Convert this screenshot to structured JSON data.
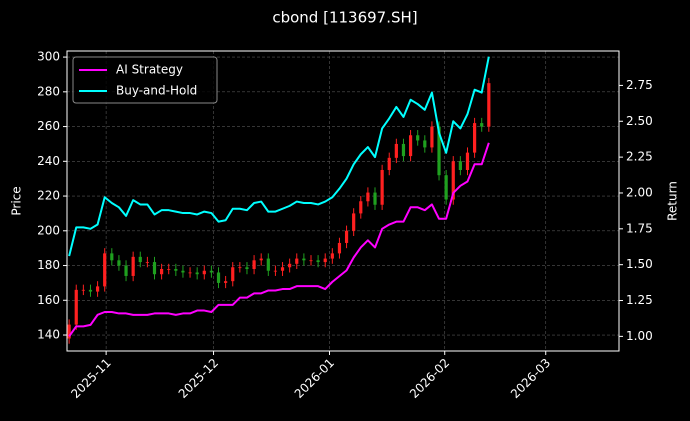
{
  "chart_data": {
    "type": "candlestick",
    "title": "cbond [113697.SH]",
    "ylabel": "Price",
    "y2label": "Return",
    "open": [
      138,
      146,
      166,
      166,
      165,
      168,
      187,
      183,
      180,
      174,
      185,
      182,
      182,
      175,
      178,
      178,
      177,
      176,
      176,
      175,
      177,
      176,
      170,
      171,
      179,
      179,
      178,
      183,
      184,
      177,
      177,
      179,
      181,
      184,
      183,
      183,
      182,
      184,
      187,
      193,
      200,
      210,
      217,
      222,
      215,
      235,
      242,
      250,
      243,
      255,
      252,
      248,
      260,
      232,
      218,
      240,
      235,
      245,
      262,
      260
    ],
    "high": [
      149,
      169,
      169,
      169,
      171,
      190,
      190,
      186,
      183,
      188,
      188,
      185,
      185,
      181,
      181,
      181,
      180,
      179,
      179,
      180,
      180,
      179,
      174,
      182,
      182,
      182,
      186,
      187,
      187,
      180,
      182,
      184,
      187,
      187,
      186,
      186,
      187,
      190,
      196,
      203,
      213,
      220,
      225,
      225,
      238,
      245,
      253,
      253,
      258,
      258,
      255,
      263,
      263,
      235,
      243,
      243,
      248,
      265,
      265,
      288
    ],
    "low": [
      135,
      143,
      163,
      162,
      162,
      165,
      180,
      177,
      171,
      171,
      179,
      179,
      172,
      172,
      175,
      174,
      173,
      173,
      172,
      172,
      173,
      167,
      167,
      168,
      176,
      175,
      175,
      180,
      174,
      174,
      174,
      176,
      178,
      180,
      180,
      179,
      179,
      181,
      184,
      190,
      197,
      207,
      214,
      212,
      212,
      232,
      239,
      240,
      240,
      249,
      245,
      245,
      229,
      215,
      215,
      232,
      232,
      242,
      257,
      257
    ],
    "close": [
      146,
      166,
      166,
      165,
      168,
      187,
      183,
      180,
      174,
      185,
      182,
      182,
      175,
      178,
      178,
      177,
      176,
      176,
      175,
      177,
      176,
      170,
      171,
      179,
      179,
      178,
      183,
      184,
      177,
      177,
      179,
      181,
      184,
      183,
      183,
      182,
      184,
      187,
      193,
      200,
      210,
      217,
      222,
      215,
      235,
      242,
      250,
      243,
      255,
      252,
      248,
      260,
      232,
      218,
      240,
      235,
      245,
      262,
      260,
      285
    ],
    "up_color": "#ff2020",
    "down_color": "#1fa01f",
    "series": [
      {
        "name": "AI Strategy",
        "color": "#ff00ff",
        "axis": "y2",
        "values": [
          1.0,
          1.07,
          1.07,
          1.08,
          1.15,
          1.17,
          1.17,
          1.16,
          1.16,
          1.15,
          1.15,
          1.15,
          1.16,
          1.16,
          1.16,
          1.15,
          1.16,
          1.16,
          1.18,
          1.18,
          1.17,
          1.22,
          1.22,
          1.22,
          1.27,
          1.27,
          1.3,
          1.3,
          1.32,
          1.32,
          1.33,
          1.33,
          1.35,
          1.35,
          1.35,
          1.35,
          1.33,
          1.38,
          1.42,
          1.46,
          1.55,
          1.62,
          1.67,
          1.62,
          1.75,
          1.78,
          1.8,
          1.8,
          1.9,
          1.9,
          1.88,
          1.92,
          1.82,
          1.82,
          2.0,
          2.05,
          2.08,
          2.2,
          2.2,
          2.35
        ]
      },
      {
        "name": "Buy-and-Hold",
        "color": "#00ffff",
        "axis": "y2",
        "values": [
          1.56,
          1.76,
          1.76,
          1.75,
          1.78,
          1.97,
          1.93,
          1.9,
          1.84,
          1.95,
          1.92,
          1.92,
          1.85,
          1.88,
          1.88,
          1.87,
          1.86,
          1.86,
          1.85,
          1.87,
          1.86,
          1.8,
          1.81,
          1.89,
          1.89,
          1.88,
          1.93,
          1.94,
          1.87,
          1.87,
          1.89,
          1.91,
          1.94,
          1.93,
          1.93,
          1.92,
          1.94,
          1.97,
          2.03,
          2.1,
          2.2,
          2.27,
          2.32,
          2.25,
          2.45,
          2.52,
          2.6,
          2.53,
          2.65,
          2.62,
          2.58,
          2.7,
          2.42,
          2.28,
          2.5,
          2.45,
          2.55,
          2.72,
          2.7,
          2.95
        ]
      }
    ],
    "xlim": [
      -0.3,
      77.3
    ],
    "xticks": [
      {
        "value": 5.2,
        "label": "2025-11"
      },
      {
        "value": 20.3,
        "label": "2025-12"
      },
      {
        "value": 36.6,
        "label": "2026-01"
      },
      {
        "value": 52.8,
        "label": "2026-02"
      },
      {
        "value": 67.0,
        "label": "2026-03"
      }
    ],
    "ylim": [
      130.8,
      303.5
    ],
    "yticks": [
      140,
      160,
      180,
      200,
      220,
      240,
      260,
      280,
      300
    ],
    "y2lim": [
      0.898,
      2.99
    ],
    "y2ticks": [
      {
        "value": 1,
        "label": "1.00"
      },
      {
        "value": 1.25,
        "label": "1.25"
      },
      {
        "value": 1.5,
        "label": "1.50"
      },
      {
        "value": 1.75,
        "label": "1.75"
      },
      {
        "value": 2,
        "label": "2.00"
      },
      {
        "value": 2.25,
        "label": "2.25"
      },
      {
        "value": 2.5,
        "label": "2.50"
      },
      {
        "value": 2.75,
        "label": "2.75"
      }
    ],
    "grid": true,
    "legend": "upper left"
  }
}
